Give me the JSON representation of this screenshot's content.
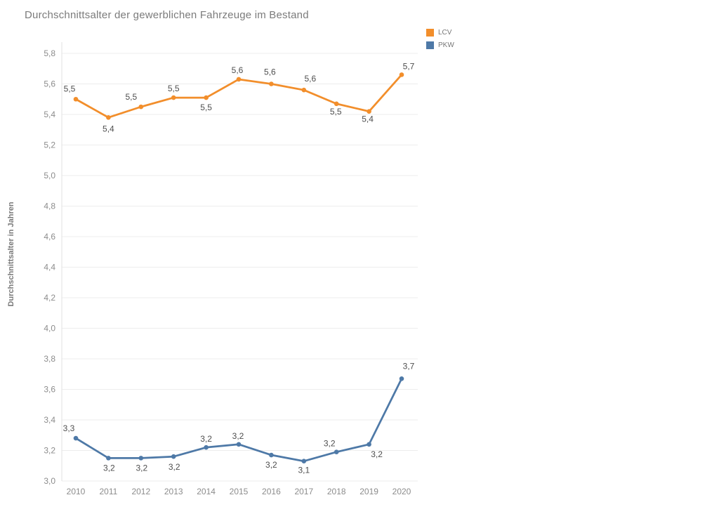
{
  "chart_data": {
    "type": "line",
    "title": "Durchschnittsalter der gewerblichen Fahrzeuge im Bestand",
    "xlabel": "",
    "ylabel": "Durchschnittsalter in Jahren",
    "x": [
      "2010",
      "2011",
      "2012",
      "2013",
      "2014",
      "2015",
      "2016",
      "2017",
      "2018",
      "2019",
      "2020"
    ],
    "ylim": [
      3.0,
      5.8
    ],
    "grid": true,
    "legend_position": "top-right",
    "ytick_values": [
      5.8,
      5.6,
      5.4,
      5.2,
      5.0,
      4.8,
      4.6,
      4.4,
      4.2,
      4.0,
      3.8,
      3.6,
      3.4,
      3.2,
      3.0
    ],
    "ytick_labels": [
      "5,8",
      "5,6",
      "5,4",
      "5,2",
      "5,0",
      "4,8",
      "4,6",
      "4,4",
      "4,2",
      "4,0",
      "3,8",
      "3,6",
      "3,4",
      "3,2",
      "3,0"
    ],
    "series": [
      {
        "name": "LCV",
        "color": "#F28E2B",
        "values": [
          5.5,
          5.4,
          5.5,
          5.5,
          5.5,
          5.6,
          5.6,
          5.6,
          5.5,
          5.4,
          5.7
        ],
        "plot_values": [
          5.5,
          5.38,
          5.45,
          5.51,
          5.51,
          5.63,
          5.6,
          5.56,
          5.47,
          5.42,
          5.66
        ],
        "labels": [
          "5,5",
          "5,4",
          "5,5",
          "5,5",
          "5,5",
          "5,6",
          "5,6",
          "5,6",
          "5,5",
          "5,4",
          "5,7"
        ],
        "label_offsets": [
          [
            -9,
            -11
          ],
          [
            0,
            20
          ],
          [
            -14,
            -10
          ],
          [
            0,
            -9
          ],
          [
            0,
            18
          ],
          [
            -2,
            -9
          ],
          [
            -2,
            -13
          ],
          [
            9,
            -12
          ],
          [
            -1,
            15
          ],
          [
            -2,
            15
          ],
          [
            10,
            -8
          ]
        ]
      },
      {
        "name": "PKW",
        "color": "#4E79A7",
        "values": [
          3.3,
          3.2,
          3.2,
          3.2,
          3.2,
          3.2,
          3.2,
          3.1,
          3.2,
          3.2,
          3.7
        ],
        "plot_values": [
          3.28,
          3.15,
          3.15,
          3.16,
          3.22,
          3.24,
          3.17,
          3.13,
          3.19,
          3.24,
          3.67
        ],
        "labels": [
          "3,3",
          "3,2",
          "3,2",
          "3,2",
          "3,2",
          "3,2",
          "3,2",
          "3,1",
          "3,2",
          "3,2",
          "3,7"
        ],
        "label_offsets": [
          [
            -10,
            -10
          ],
          [
            1,
            18
          ],
          [
            1,
            18
          ],
          [
            1,
            19
          ],
          [
            0,
            -8
          ],
          [
            -1,
            -8
          ],
          [
            0,
            18
          ],
          [
            0,
            17
          ],
          [
            -10,
            -8
          ],
          [
            11,
            18
          ],
          [
            10,
            -14
          ]
        ]
      }
    ],
    "colors": {
      "grid": "#EDEDED",
      "axis_line": "#E2E2E2",
      "tick_label": "#8C8C8C",
      "data_label": "#4E4E4E",
      "title": "#7B7B7B"
    }
  }
}
